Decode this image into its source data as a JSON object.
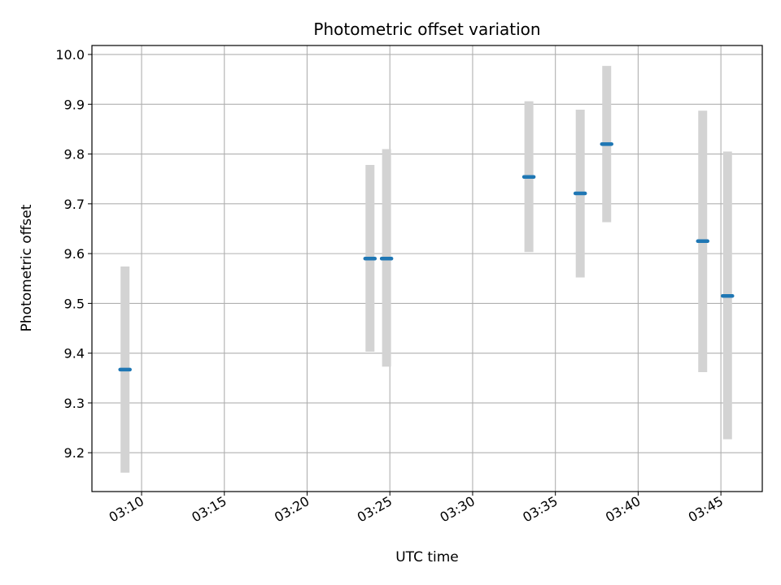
{
  "chart_data": {
    "type": "scatter",
    "title": "Photometric offset variation",
    "xlabel": "UTC time",
    "ylabel": "Photometric offset",
    "x_ticks": [
      "03:10",
      "03:15",
      "03:20",
      "03:25",
      "03:30",
      "03:35",
      "03:40",
      "03:45"
    ],
    "y_ticks": [
      "9.2",
      "9.3",
      "9.4",
      "9.5",
      "9.6",
      "9.7",
      "9.8",
      "9.9",
      "10.0"
    ],
    "xlim": [
      "03:07:00",
      "03:47:30"
    ],
    "ylim": [
      9.122,
      10.018
    ],
    "grid": true,
    "colors": {
      "point": "#1f77b4",
      "errorbar": "#d3d3d3",
      "grid": "#b0b0b0"
    },
    "points": [
      {
        "x": "03:09:00",
        "y": 9.367,
        "low": 9.16,
        "high": 9.574
      },
      {
        "x": "03:23:48",
        "y": 9.59,
        "low": 9.403,
        "high": 9.778
      },
      {
        "x": "03:24:48",
        "y": 9.59,
        "low": 9.373,
        "high": 9.81
      },
      {
        "x": "03:33:24",
        "y": 9.754,
        "low": 9.603,
        "high": 9.906
      },
      {
        "x": "03:36:30",
        "y": 9.721,
        "low": 9.552,
        "high": 9.889
      },
      {
        "x": "03:38:06",
        "y": 9.82,
        "low": 9.663,
        "high": 9.977
      },
      {
        "x": "03:43:54",
        "y": 9.625,
        "low": 9.362,
        "high": 9.887
      },
      {
        "x": "03:45:24",
        "y": 9.515,
        "low": 9.227,
        "high": 9.805
      }
    ]
  }
}
